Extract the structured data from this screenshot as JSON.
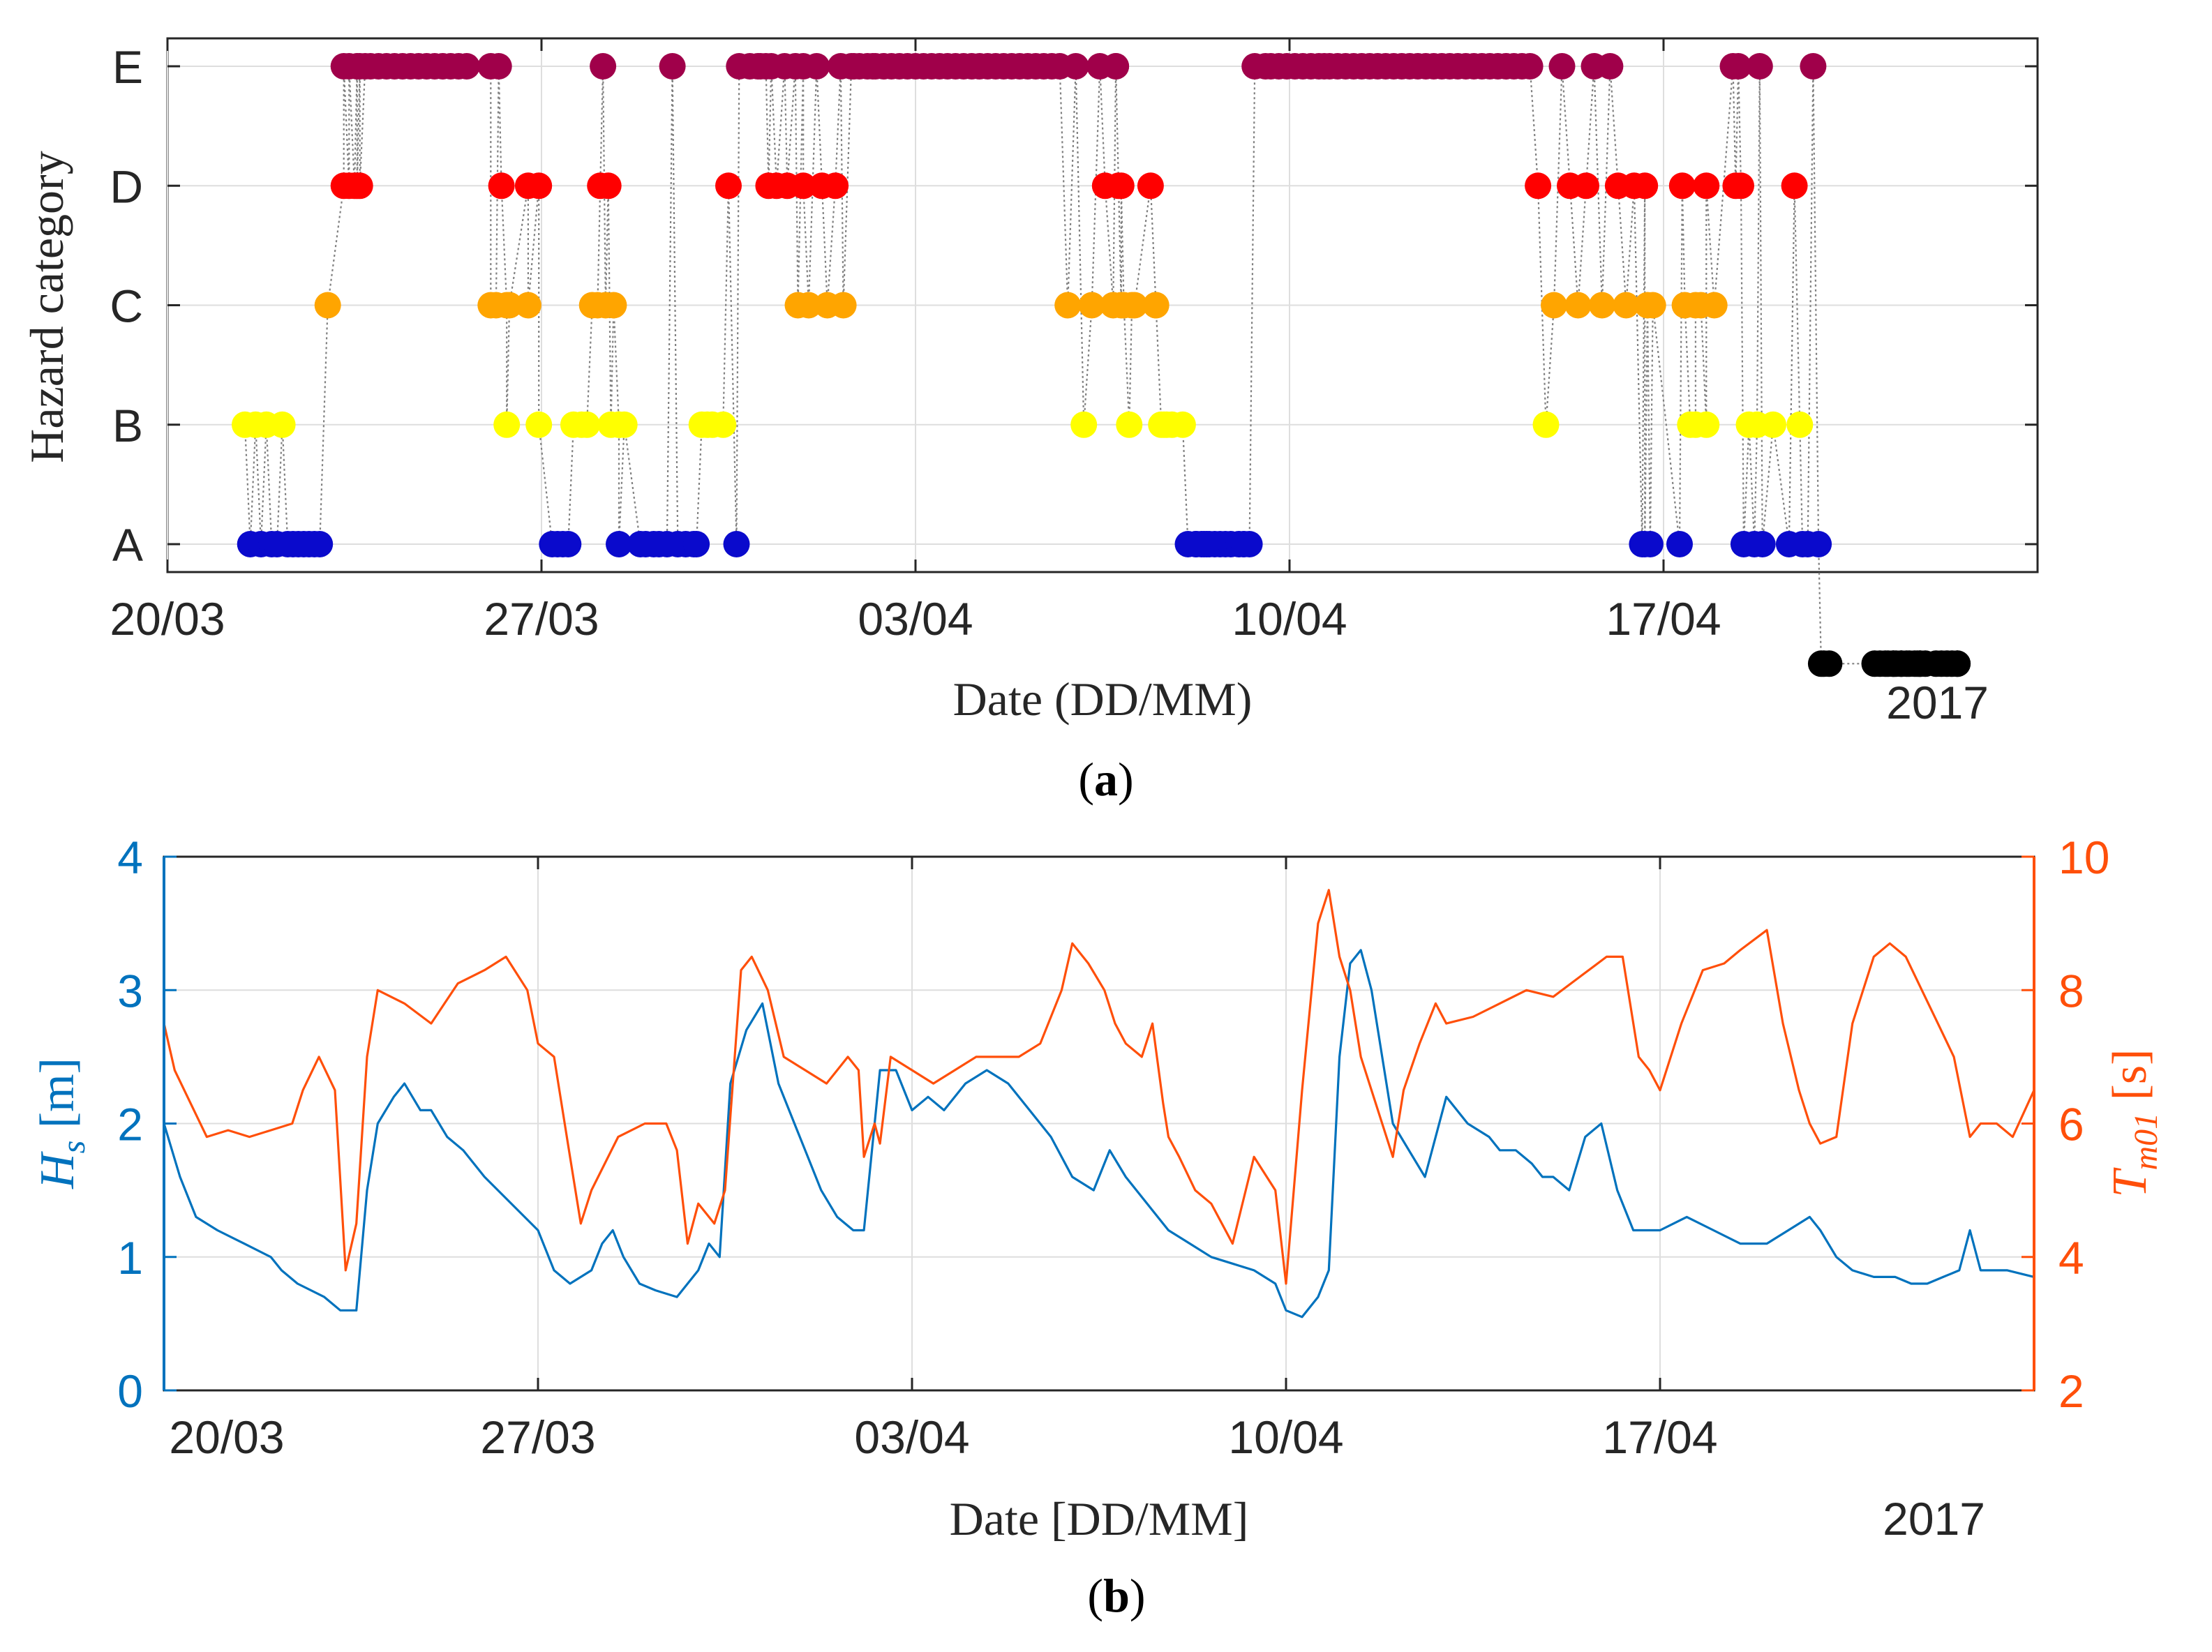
{
  "chart_data": [
    {
      "panel_label": "(a)",
      "type": "scatter",
      "ylabel": "Hazard category",
      "xlabel": "Date (DD/MM)",
      "year": "2017",
      "categories": [
        "A",
        "B",
        "C",
        "D",
        "E"
      ],
      "xlim_days": [
        0,
        35
      ],
      "x_ticks": [
        {
          "day": 0,
          "label": "20/03"
        },
        {
          "day": 7,
          "label": "27/03"
        },
        {
          "day": 14,
          "label": "03/04"
        },
        {
          "day": 21,
          "label": "10/04"
        },
        {
          "day": 28,
          "label": "17/04"
        }
      ],
      "grid": true,
      "connector": "dotted gray line between consecutive points",
      "category_colors": {
        "A": "#0a0acc",
        "B": "#ffff00",
        "C": "#ffa500",
        "D": "#ff0000",
        "E": "#a0004a"
      },
      "series": {
        "x": [
          1.45,
          1.55,
          1.65,
          1.75,
          1.85,
          1.95,
          2.05,
          2.15,
          2.25,
          2.35,
          2.45,
          2.55,
          2.65,
          2.75,
          2.85,
          3.0,
          3.3,
          3.3,
          3.4,
          3.4,
          3.5,
          3.55,
          3.55,
          3.6,
          3.6,
          3.7,
          3.8,
          3.95,
          4.1,
          4.25,
          4.4,
          4.55,
          4.7,
          4.85,
          5.0,
          5.15,
          5.3,
          5.45,
          5.6,
          6.05,
          6.05,
          6.15,
          6.2,
          6.25,
          6.35,
          6.35,
          6.4,
          6.75,
          6.75,
          6.95,
          6.95,
          7.2,
          7.3,
          7.4,
          7.5,
          7.6,
          7.75,
          7.85,
          7.95,
          8.05,
          8.1,
          8.15,
          8.2,
          8.25,
          8.3,
          8.35,
          8.45,
          8.45,
          8.45,
          8.55,
          8.85,
          8.95,
          9.1,
          9.2,
          9.35,
          9.45,
          9.55,
          9.7,
          9.85,
          9.9,
          10.0,
          10.1,
          10.2,
          10.4,
          10.5,
          10.65,
          10.7,
          10.9,
          11.05,
          11.1,
          11.2,
          11.25,
          11.3,
          11.4,
          11.55,
          11.6,
          11.75,
          11.8,
          11.9,
          11.9,
          12.0,
          12.15,
          12.25,
          12.35,
          12.5,
          12.6,
          12.65,
          12.8,
          12.85,
          12.95,
          13.1,
          13.2,
          13.25,
          13.4,
          13.55,
          13.7,
          13.85,
          14.0,
          14.15,
          14.3,
          14.45,
          14.6,
          14.75,
          14.9,
          15.05,
          15.2,
          15.35,
          15.5,
          15.65,
          15.8,
          15.95,
          16.1,
          16.25,
          16.4,
          16.55,
          16.7,
          16.85,
          17.0,
          17.15,
          17.3,
          17.45,
          17.55,
          17.7,
          17.75,
          17.75,
          17.8,
          17.85,
          17.85,
          17.9,
          18.0,
          18.05,
          18.1,
          18.4,
          18.5,
          18.5,
          18.6,
          18.65,
          18.7,
          18.8,
          19.0,
          19.1,
          19.25,
          19.25,
          19.35,
          19.4,
          19.45,
          19.5,
          19.6,
          19.7,
          19.8,
          19.9,
          20.05,
          20.15,
          20.25,
          20.35,
          20.55,
          20.65,
          20.8,
          20.95,
          21.1,
          21.25,
          21.4,
          21.55,
          21.65,
          21.75,
          21.9,
          22.05,
          22.2,
          22.35,
          22.5,
          22.65,
          22.8,
          22.95,
          23.1,
          23.25,
          23.4,
          23.55,
          23.7,
          23.85,
          24.0,
          24.15,
          24.3,
          24.45,
          24.6,
          24.75,
          24.9,
          25.05,
          25.2,
          25.35,
          25.5,
          25.65,
          25.8,
          25.95,
          26.1,
          26.25,
          26.4,
          26.55,
          26.7,
          26.85,
          27.0,
          27.15,
          27.3,
          27.45,
          27.6,
          27.65,
          27.65,
          27.7,
          27.75,
          27.8,
          28.3,
          28.35,
          28.4,
          28.5,
          28.6,
          28.6,
          28.7,
          28.8,
          28.8,
          28.95,
          29.3,
          29.35,
          29.4,
          29.45,
          29.5,
          29.6,
          29.7,
          29.75,
          29.8,
          29.85,
          30.05,
          30.35,
          30.45,
          30.55,
          30.6,
          30.7,
          30.8,
          30.9,
          30.95,
          31.0,
          31.1,
          31.95,
          32.05,
          32.15,
          32.2,
          32.3,
          32.3,
          32.35,
          32.45,
          32.45,
          32.55,
          32.6,
          32.7,
          32.75,
          32.8,
          32.8,
          32.9,
          33.1,
          33.2,
          33.3,
          33.4,
          33.5,
          33.5
        ],
        "category": [
          "B",
          "A",
          "B",
          "A",
          "B",
          "A",
          "A",
          "B",
          "A",
          "A",
          "A",
          "A",
          "A",
          "A",
          "A",
          "C",
          "D",
          "E",
          "D",
          "E",
          "D",
          "E",
          "D",
          "E",
          "D",
          "E",
          "E",
          "E",
          "E",
          "E",
          "E",
          "E",
          "E",
          "E",
          "E",
          "E",
          "E",
          "E",
          "E",
          "E",
          "C",
          "C",
          "E",
          "D",
          "C",
          "B",
          "C",
          "D",
          "C",
          "D",
          "B",
          "A",
          "A",
          "A",
          "A",
          "B",
          "B",
          "B",
          "C",
          "C",
          "D",
          "E",
          "C",
          "D",
          "B",
          "C",
          "B",
          "B",
          "A",
          "B",
          "A",
          "A",
          "A",
          "A",
          "A",
          "E",
          "A",
          "A",
          "A",
          "A",
          "B",
          "B",
          "B",
          "B",
          "D",
          "A",
          "E",
          "E",
          "E",
          "E",
          "E",
          "D",
          "E",
          "D",
          "E",
          "D",
          "E",
          "C",
          "E",
          "D",
          "C",
          "E",
          "D",
          "C",
          "D",
          "E",
          "C",
          "E",
          "E",
          "E",
          "E",
          "E",
          "E",
          "E",
          "E",
          "E",
          "E",
          "E",
          "E",
          "E",
          "E",
          "E",
          "E",
          "E",
          "E",
          "E",
          "E",
          "E",
          "E",
          "E",
          "E",
          "E",
          "E",
          "E",
          "E",
          "E",
          "C",
          "E",
          "B",
          "C",
          "E",
          "D",
          "C",
          "E",
          "E",
          "D",
          "C",
          "D",
          "C",
          "B",
          "C",
          "C",
          "D",
          "C",
          "C",
          "B",
          "B",
          "B",
          "B",
          "B",
          "A",
          "A",
          "A",
          "A",
          "A",
          "A",
          "A",
          "A",
          "A",
          "A",
          "A",
          "A",
          "A",
          "A",
          "E",
          "E",
          "E",
          "E",
          "E",
          "E",
          "E",
          "E",
          "E",
          "E",
          "E",
          "E",
          "E",
          "E",
          "E",
          "E",
          "E",
          "E",
          "E",
          "E",
          "E",
          "E",
          "E",
          "E",
          "E",
          "E",
          "E",
          "E",
          "E",
          "E",
          "E",
          "E",
          "E",
          "E",
          "E",
          "E",
          "D",
          "B",
          "C",
          "E",
          "D",
          "C",
          "D",
          "E",
          "C",
          "E",
          "D",
          "C",
          "D",
          "A",
          "D",
          "A",
          "C",
          "A",
          "C",
          "A",
          "D",
          "C",
          "B",
          "B",
          "C",
          "C",
          "B",
          "D",
          "C",
          "E",
          "D",
          "E",
          "D",
          "A",
          "B",
          "A",
          "B",
          "E",
          "A",
          "B",
          "A",
          "D",
          "B",
          "A",
          "A",
          "E",
          "A"
        ]
      }
    },
    {
      "panel_label": "(b)",
      "type": "line",
      "xlabel": "Date [DD/MM]",
      "year": "2017",
      "xlim_days": [
        0,
        35
      ],
      "x_ticks": [
        {
          "day": 0,
          "label": "20/03"
        },
        {
          "day": 7,
          "label": "27/03"
        },
        {
          "day": 14,
          "label": "03/04"
        },
        {
          "day": 21,
          "label": "10/04"
        },
        {
          "day": 28,
          "label": "17/04"
        }
      ],
      "grid": true,
      "y_left": {
        "label_main": "H",
        "label_sub": "s",
        "label_unit": "[m]",
        "color": "#0072bd",
        "ylim": [
          0,
          4
        ],
        "ticks": [
          0,
          1,
          2,
          3,
          4
        ]
      },
      "y_right": {
        "label_main": "T",
        "label_sub": "m01",
        "label_unit": "[s]",
        "color": "#ff4f0a",
        "ylim": [
          2,
          10
        ],
        "ticks": [
          2,
          4,
          6,
          8,
          10
        ]
      },
      "series": [
        {
          "name": "Hs",
          "axis": "left",
          "color": "#0072bd",
          "x": [
            0,
            0.3,
            0.6,
            1.0,
            1.5,
            2.0,
            2.2,
            2.5,
            3.0,
            3.3,
            3.6,
            3.8,
            4.0,
            4.3,
            4.5,
            4.8,
            5.0,
            5.3,
            5.6,
            6.0,
            6.5,
            7.0,
            7.3,
            7.6,
            8.0,
            8.2,
            8.4,
            8.6,
            8.9,
            9.2,
            9.6,
            10.0,
            10.2,
            10.4,
            10.6,
            10.9,
            11.2,
            11.5,
            11.8,
            12.0,
            12.3,
            12.6,
            12.9,
            13.1,
            13.4,
            13.7,
            14.0,
            14.3,
            14.6,
            15.0,
            15.4,
            15.8,
            16.2,
            16.6,
            17.0,
            17.4,
            17.7,
            18.0,
            18.4,
            18.8,
            19.2,
            19.6,
            20.0,
            20.4,
            20.8,
            21.0,
            21.3,
            21.6,
            21.8,
            22.0,
            22.2,
            22.4,
            22.6,
            22.8,
            23.0,
            23.3,
            23.6,
            24.0,
            24.4,
            24.8,
            25.0,
            25.3,
            25.6,
            25.8,
            26.0,
            26.3,
            26.6,
            26.9,
            27.2,
            27.5,
            28.0,
            28.5,
            29.0,
            29.5,
            30.0,
            30.4,
            30.8,
            31.0,
            31.3,
            31.6,
            32.0,
            32.4,
            32.7,
            33.0,
            33.3,
            33.6,
            33.8,
            34.0,
            34.2,
            34.5,
            35.0
          ],
          "values": [
            2.0,
            1.6,
            1.3,
            1.2,
            1.1,
            1.0,
            0.9,
            0.8,
            0.7,
            0.6,
            0.6,
            1.5,
            2.0,
            2.2,
            2.3,
            2.1,
            2.1,
            1.9,
            1.8,
            1.6,
            1.4,
            1.2,
            0.9,
            0.8,
            0.9,
            1.1,
            1.2,
            1.0,
            0.8,
            0.75,
            0.7,
            0.9,
            1.1,
            1.0,
            2.3,
            2.7,
            2.9,
            2.3,
            2.0,
            1.8,
            1.5,
            1.3,
            1.2,
            1.2,
            2.4,
            2.4,
            2.1,
            2.2,
            2.1,
            2.3,
            2.4,
            2.3,
            2.1,
            1.9,
            1.6,
            1.5,
            1.8,
            1.6,
            1.4,
            1.2,
            1.1,
            1.0,
            0.95,
            0.9,
            0.8,
            0.6,
            0.55,
            0.7,
            0.9,
            2.5,
            3.2,
            3.3,
            3.0,
            2.5,
            2.0,
            1.8,
            1.6,
            2.2,
            2.0,
            1.9,
            1.8,
            1.8,
            1.7,
            1.6,
            1.6,
            1.5,
            1.9,
            2.0,
            1.5,
            1.2,
            1.2,
            1.3,
            1.2,
            1.1,
            1.1,
            1.2,
            1.3,
            1.2,
            1.0,
            0.9,
            0.85,
            0.85,
            0.8,
            0.8,
            0.85,
            0.9,
            1.2,
            0.9,
            0.9,
            0.9,
            0.85
          ]
        },
        {
          "name": "Tm01",
          "axis": "right",
          "color": "#ff4f0a",
          "x": [
            0,
            0.2,
            0.5,
            0.8,
            1.2,
            1.6,
            2.0,
            2.4,
            2.6,
            2.9,
            3.2,
            3.4,
            3.6,
            3.8,
            4.0,
            4.5,
            5.0,
            5.5,
            6.0,
            6.4,
            6.8,
            7.0,
            7.3,
            7.6,
            7.8,
            8.0,
            8.5,
            9.0,
            9.4,
            9.6,
            9.8,
            10.0,
            10.3,
            10.5,
            10.8,
            11.0,
            11.3,
            11.6,
            12.0,
            12.4,
            12.8,
            13.0,
            13.1,
            13.3,
            13.4,
            13.6,
            14.0,
            14.4,
            14.8,
            15.2,
            15.6,
            16.0,
            16.4,
            16.8,
            17.0,
            17.3,
            17.6,
            17.8,
            18.0,
            18.3,
            18.5,
            18.7,
            18.8,
            19.0,
            19.3,
            19.6,
            20.0,
            20.4,
            20.8,
            21.0,
            21.3,
            21.6,
            21.8,
            22.0,
            22.2,
            22.4,
            22.6,
            22.8,
            23.0,
            23.2,
            23.5,
            23.8,
            24.0,
            24.5,
            25.0,
            25.5,
            26.0,
            26.5,
            27.0,
            27.3,
            27.6,
            27.8,
            28.0,
            28.4,
            28.8,
            29.2,
            29.5,
            30.0,
            30.3,
            30.6,
            30.8,
            31.0,
            31.3,
            31.6,
            32.0,
            32.3,
            32.6,
            32.9,
            33.2,
            33.5,
            33.8,
            34.0,
            34.3,
            34.6,
            35.0
          ],
          "values": [
            7.5,
            6.8,
            6.3,
            5.8,
            5.9,
            5.8,
            5.9,
            6.0,
            6.5,
            7.0,
            6.5,
            3.8,
            4.5,
            7.0,
            8.0,
            7.8,
            7.5,
            8.1,
            8.3,
            8.5,
            8.0,
            7.2,
            7.0,
            5.5,
            4.5,
            5.0,
            5.8,
            6.0,
            6.0,
            5.6,
            4.2,
            4.8,
            4.5,
            5.0,
            8.3,
            8.5,
            8.0,
            7.0,
            6.8,
            6.6,
            7.0,
            6.8,
            5.5,
            6.0,
            5.7,
            7.0,
            6.8,
            6.6,
            6.8,
            7.0,
            7.0,
            7.0,
            7.2,
            8.0,
            8.7,
            8.4,
            8.0,
            7.5,
            7.2,
            7.0,
            7.5,
            6.3,
            5.8,
            5.5,
            5.0,
            4.8,
            4.2,
            5.5,
            5.0,
            3.6,
            6.5,
            9.0,
            9.5,
            8.5,
            8.0,
            7.0,
            6.5,
            6.0,
            5.5,
            6.5,
            7.2,
            7.8,
            7.5,
            7.6,
            7.8,
            8.0,
            7.9,
            8.2,
            8.5,
            8.5,
            7.0,
            6.8,
            6.5,
            7.5,
            8.3,
            8.4,
            8.6,
            8.9,
            7.5,
            6.5,
            6.0,
            5.7,
            5.8,
            7.5,
            8.5,
            8.7,
            8.5,
            8.0,
            7.5,
            7.0,
            5.8,
            6.0,
            6.0,
            5.8,
            6.5
          ]
        }
      ]
    }
  ]
}
